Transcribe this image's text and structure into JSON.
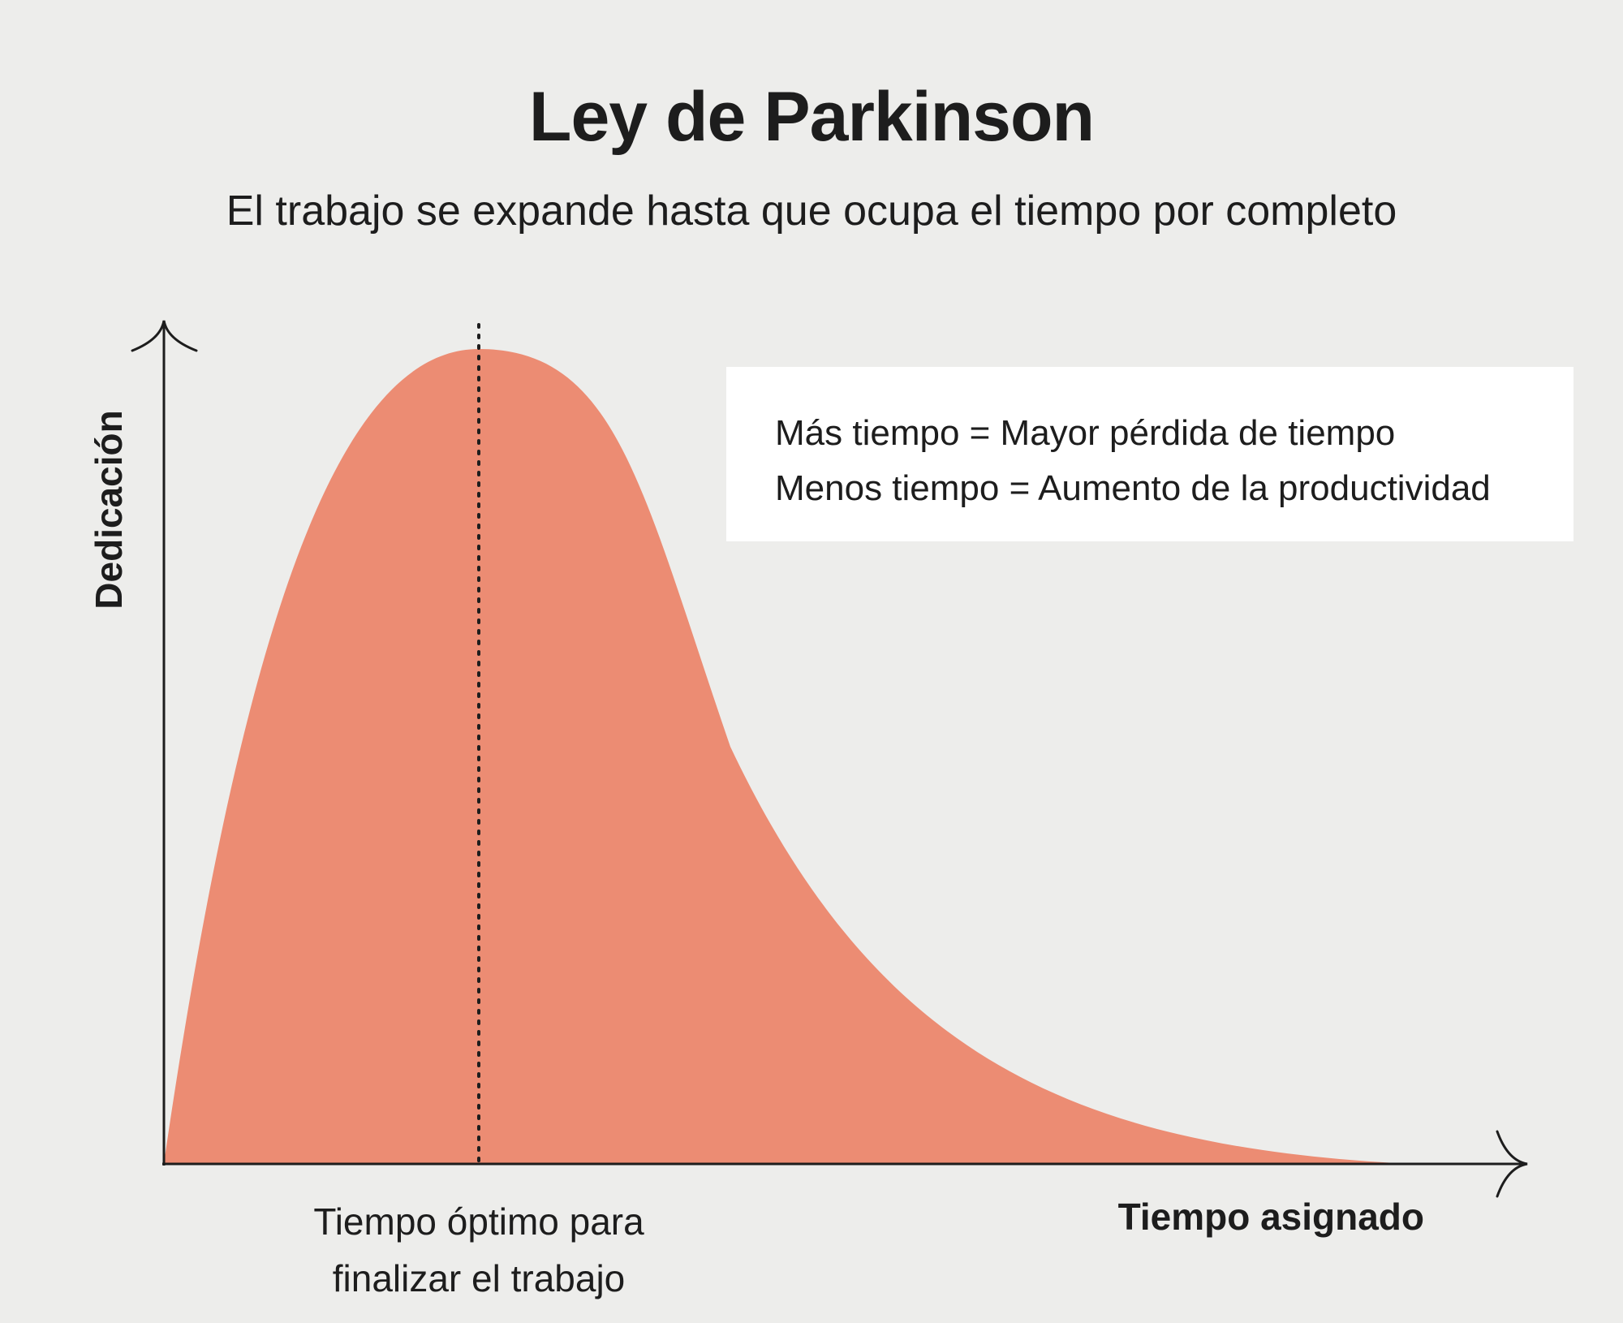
{
  "title": "Ley de Parkinson",
  "subtitle": "El trabajo se expande hasta que ocupa el tiempo por completo",
  "legend": {
    "line1": "Más tiempo = Mayor pérdida de tiempo",
    "line2": "Menos tiempo = Aumento de la productividad"
  },
  "axes": {
    "y_label": "Dedicación",
    "x_label": "Tiempo asignado"
  },
  "optimal_label": {
    "line1": "Tiempo óptimo para",
    "line2": "finalizar el trabajo"
  },
  "colors": {
    "curve_fill": "#ec8c73",
    "axis": "#1d1d1d",
    "background": "#ededeb"
  }
}
